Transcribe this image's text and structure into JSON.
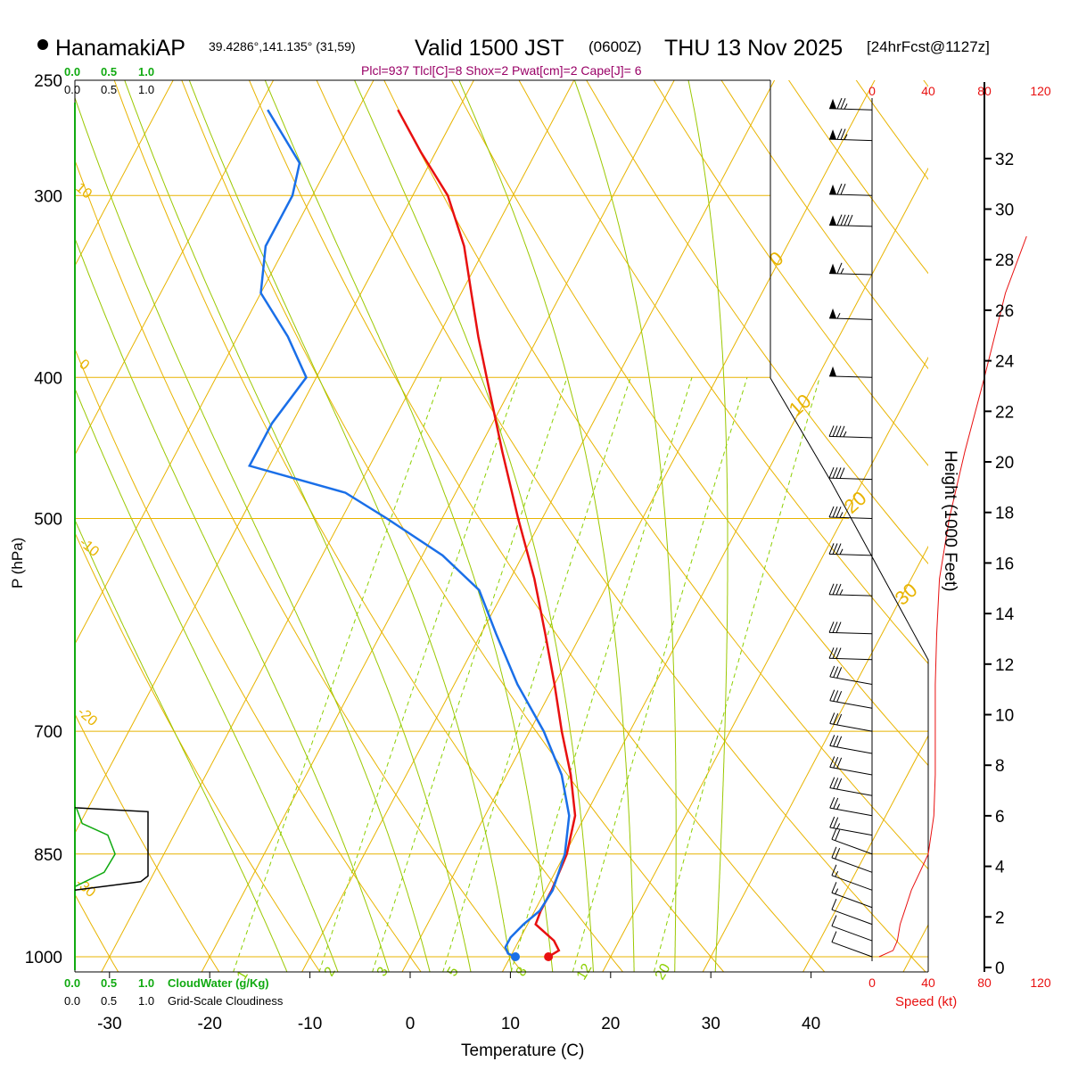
{
  "header": {
    "station": "HanamakiAP",
    "coords": "39.4286°,141.135° (31,59)",
    "valid_prefix": "Valid 1500 JST",
    "valid_z": "(0600Z)",
    "valid_date": "THU 13 Nov 2025",
    "forecast": "[24hrFcst@1127z]",
    "indices": "Plcl=937 Tlcl[C]=8 Shox=2 Pwat[cm]=2 Cape[J]= 6"
  },
  "colors": {
    "isotherm": "#e8b400",
    "dry_adiabat": "#e8b400",
    "moist_adiabat": "#9bc800",
    "mixing_ratio": "#8ccf00",
    "temperature": "#e81010",
    "dewpoint": "#1a6fe8",
    "cloud_water": "#11aa11",
    "axis": "#000000",
    "indices": "#990066",
    "speed": "#e81010"
  },
  "chart_data": {
    "type": "skew-t",
    "title": "HanamakiAP Valid 1500 JST (0600Z) THU 13 Nov 2025",
    "xlabel": "Temperature (C)",
    "ylabel": "P (hPa)",
    "y2label": "Height (1000 Feet)",
    "xlim": [
      -34,
      36
    ],
    "ylim_hpa": [
      1000,
      250
    ],
    "x_ticks": [
      "-30",
      "-20",
      "-10",
      "0",
      "10",
      "20",
      "30",
      "40"
    ],
    "x_tick_values": [
      -30,
      -20,
      -10,
      0,
      10,
      20,
      30,
      40
    ],
    "pressure_labels": [
      "250",
      "300",
      "400",
      "500",
      "700",
      "850",
      "1000"
    ],
    "pressure_values": [
      250,
      300,
      400,
      500,
      700,
      850,
      1000
    ],
    "height_ticks": [
      "0",
      "2",
      "4",
      "6",
      "8",
      "10",
      "12",
      "14",
      "16",
      "18",
      "20",
      "22",
      "24",
      "26",
      "28",
      "30",
      "32"
    ],
    "height_values": [
      0,
      2,
      4,
      6,
      8,
      10,
      12,
      14,
      16,
      18,
      20,
      22,
      24,
      26,
      28,
      30,
      32
    ],
    "speed_ticks": [
      "0",
      "40",
      "80",
      "120"
    ],
    "speed_values": [
      0,
      40,
      80,
      120
    ],
    "speed_label": "Speed (kt)",
    "cloud_ticks_green": [
      "0.0",
      "0.5",
      "1.0"
    ],
    "cloud_ticks_black": [
      "0.0",
      "0.5",
      "1.0"
    ],
    "cloud_water_label": "CloudWater (g/Kg)",
    "cloudiness_label": "Grid-Scale Cloudiness",
    "isotherm_labels": [
      {
        "text": "0",
        "value": 0
      },
      {
        "text": "10",
        "value": 10
      },
      {
        "text": "20",
        "value": 20
      },
      {
        "text": "30",
        "value": 30
      }
    ],
    "theta_labels": [
      {
        "text": "10",
        "value": 10
      },
      {
        "text": "0",
        "value": 0
      },
      {
        "text": "-10",
        "value": -10
      },
      {
        "text": "-20",
        "value": -20
      },
      {
        "text": "-30",
        "value": -30
      }
    ],
    "mixing_ratio_labels": [
      {
        "text": "1",
        "value": 1
      },
      {
        "text": "2",
        "value": 2
      },
      {
        "text": "3",
        "value": 3
      },
      {
        "text": "5",
        "value": 5
      },
      {
        "text": "8",
        "value": 8
      },
      {
        "text": "12",
        "value": 12
      },
      {
        "text": "20",
        "value": 20
      }
    ],
    "temperature": [
      {
        "p": 1000,
        "t": 13.8
      },
      {
        "p": 990,
        "t": 14.5
      },
      {
        "p": 975,
        "t": 13.5
      },
      {
        "p": 950,
        "t": 10.8
      },
      {
        "p": 930,
        "t": 10.6
      },
      {
        "p": 900,
        "t": 10.6
      },
      {
        "p": 850,
        "t": 10.2
      },
      {
        "p": 800,
        "t": 9.0
      },
      {
        "p": 750,
        "t": 6.4
      },
      {
        "p": 700,
        "t": 3.2
      },
      {
        "p": 650,
        "t": 0.0
      },
      {
        "p": 600,
        "t": -3.6
      },
      {
        "p": 550,
        "t": -7.6
      },
      {
        "p": 500,
        "t": -12.4
      },
      {
        "p": 450,
        "t": -17.5
      },
      {
        "p": 400,
        "t": -23.0
      },
      {
        "p": 375,
        "t": -26.0
      },
      {
        "p": 350,
        "t": -29.0
      },
      {
        "p": 325,
        "t": -32.2
      },
      {
        "p": 300,
        "t": -36.5
      },
      {
        "p": 280,
        "t": -41.5
      },
      {
        "p": 262,
        "t": -46.0
      }
    ],
    "dewpoint": [
      {
        "p": 1000,
        "t": 10.5
      },
      {
        "p": 995,
        "t": 9.6
      },
      {
        "p": 985,
        "t": 9.0
      },
      {
        "p": 970,
        "t": 9.0
      },
      {
        "p": 950,
        "t": 9.6
      },
      {
        "p": 930,
        "t": 10.5
      },
      {
        "p": 900,
        "t": 10.7
      },
      {
        "p": 850,
        "t": 10.0
      },
      {
        "p": 800,
        "t": 8.4
      },
      {
        "p": 750,
        "t": 5.5
      },
      {
        "p": 700,
        "t": 1.4
      },
      {
        "p": 650,
        "t": -3.7
      },
      {
        "p": 600,
        "t": -8.5
      },
      {
        "p": 560,
        "t": -12.5
      },
      {
        "p": 530,
        "t": -18.0
      },
      {
        "p": 500,
        "t": -25.5
      },
      {
        "p": 480,
        "t": -31.0
      },
      {
        "p": 460,
        "t": -42.0
      },
      {
        "p": 430,
        "t": -42.0
      },
      {
        "p": 400,
        "t": -41.0
      },
      {
        "p": 375,
        "t": -45.0
      },
      {
        "p": 350,
        "t": -50.0
      },
      {
        "p": 325,
        "t": -52.0
      },
      {
        "p": 300,
        "t": -52.0
      },
      {
        "p": 285,
        "t": -53.0
      },
      {
        "p": 262,
        "t": -59.0
      }
    ],
    "height_profile_ticks_ft": [
      {
        "p": 1000,
        "kft": 0.36
      },
      {
        "p": 850,
        "kft": 4.8
      },
      {
        "p": 700,
        "kft": 10.0
      },
      {
        "p": 500,
        "kft": 18.6
      },
      {
        "p": 400,
        "kft": 24.3
      },
      {
        "p": 300,
        "kft": 30.2
      },
      {
        "p": 250,
        "kft": 33.9
      }
    ],
    "wind_speed_profile_kt": [
      {
        "p": 1000,
        "spd": 5
      },
      {
        "p": 990,
        "spd": 15
      },
      {
        "p": 975,
        "spd": 18
      },
      {
        "p": 950,
        "spd": 20
      },
      {
        "p": 925,
        "spd": 24
      },
      {
        "p": 900,
        "spd": 28
      },
      {
        "p": 875,
        "spd": 34
      },
      {
        "p": 850,
        "spd": 40
      },
      {
        "p": 800,
        "spd": 44
      },
      {
        "p": 750,
        "spd": 45
      },
      {
        "p": 700,
        "spd": 45
      },
      {
        "p": 650,
        "spd": 45
      },
      {
        "p": 600,
        "spd": 46
      },
      {
        "p": 550,
        "spd": 48
      },
      {
        "p": 500,
        "spd": 55
      },
      {
        "p": 450,
        "spd": 66
      },
      {
        "p": 400,
        "spd": 80
      },
      {
        "p": 350,
        "spd": 95
      },
      {
        "p": 320,
        "spd": 110
      }
    ],
    "wind_barbs": [
      {
        "p": 262,
        "spd": 75
      },
      {
        "p": 275,
        "spd": 75
      },
      {
        "p": 300,
        "spd": 70
      },
      {
        "p": 315,
        "spd": 90
      },
      {
        "p": 340,
        "spd": 65
      },
      {
        "p": 365,
        "spd": 55
      },
      {
        "p": 400,
        "spd": 50
      },
      {
        "p": 440,
        "spd": 45
      },
      {
        "p": 470,
        "spd": 40
      },
      {
        "p": 500,
        "spd": 35
      },
      {
        "p": 530,
        "spd": 35
      },
      {
        "p": 565,
        "spd": 35
      },
      {
        "p": 600,
        "spd": 30
      },
      {
        "p": 625,
        "spd": 30
      },
      {
        "p": 650,
        "spd": 30
      },
      {
        "p": 675,
        "spd": 30
      },
      {
        "p": 700,
        "spd": 30
      },
      {
        "p": 725,
        "spd": 30
      },
      {
        "p": 750,
        "spd": 30
      },
      {
        "p": 775,
        "spd": 30
      },
      {
        "p": 800,
        "spd": 25
      },
      {
        "p": 825,
        "spd": 25
      },
      {
        "p": 850,
        "spd": 20
      },
      {
        "p": 875,
        "spd": 20
      },
      {
        "p": 900,
        "spd": 15
      },
      {
        "p": 925,
        "spd": 15
      },
      {
        "p": 950,
        "spd": 10
      },
      {
        "p": 975,
        "spd": 10
      },
      {
        "p": 1000,
        "spd": 10
      }
    ],
    "cloud_water_profile": [
      {
        "p": 790,
        "v": 0.02
      },
      {
        "p": 810,
        "v": 0.1
      },
      {
        "p": 825,
        "v": 0.45
      },
      {
        "p": 850,
        "v": 0.55
      },
      {
        "p": 875,
        "v": 0.4
      },
      {
        "p": 895,
        "v": 0.0
      }
    ],
    "cloudiness_profile": [
      {
        "p": 790,
        "v": 0.0
      },
      {
        "p": 795,
        "v": 1.0
      },
      {
        "p": 880,
        "v": 1.0
      },
      {
        "p": 888,
        "v": 0.9
      },
      {
        "p": 900,
        "v": 0.0
      }
    ]
  }
}
